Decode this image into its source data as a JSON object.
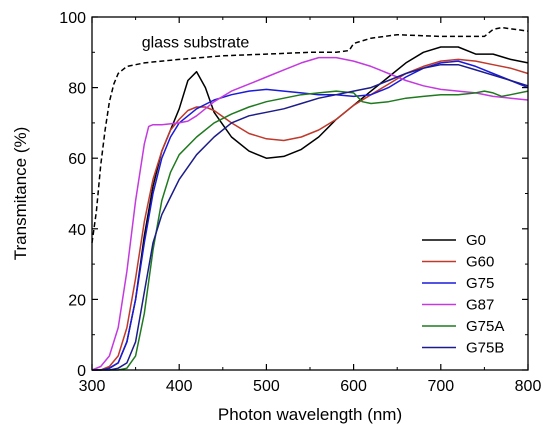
{
  "chart_data": {
    "type": "line",
    "xlabel": "Photon wavelength (nm)",
    "ylabel": "Transmitance (%)",
    "xlim": [
      300,
      800
    ],
    "ylim": [
      0,
      100
    ],
    "xticks": [
      300,
      400,
      500,
      600,
      700,
      800
    ],
    "yticks": [
      0,
      20,
      40,
      60,
      80,
      100
    ],
    "grid": false,
    "legend_position": "bottom-right",
    "annotation": {
      "text": "glass substrate",
      "x": 357,
      "y": 93
    },
    "series": [
      {
        "name": "",
        "style": "dashed",
        "color": "#000000",
        "x": [
          300,
          305,
          310,
          315,
          320,
          325,
          330,
          335,
          340,
          350,
          360,
          380,
          400,
          450,
          500,
          550,
          580,
          595,
          600,
          620,
          650,
          700,
          750,
          760,
          770,
          800
        ],
        "y": [
          36,
          45,
          58,
          68,
          76,
          81,
          84,
          85,
          86,
          86.5,
          87,
          87.5,
          88,
          89,
          89.5,
          90,
          90,
          90.5,
          92.5,
          94,
          95,
          94.5,
          94.5,
          96.5,
          97,
          96
        ]
      },
      {
        "name": "G0",
        "style": "solid",
        "color": "#000000",
        "x": [
          300,
          310,
          320,
          330,
          340,
          350,
          360,
          370,
          380,
          390,
          400,
          410,
          420,
          430,
          440,
          460,
          480,
          500,
          520,
          540,
          560,
          580,
          600,
          620,
          640,
          660,
          680,
          700,
          720,
          740,
          760,
          780,
          800
        ],
        "y": [
          0,
          0,
          0.5,
          2,
          8,
          20,
          38,
          52,
          62,
          68,
          74,
          82,
          84.5,
          80,
          73,
          66,
          62,
          60,
          60.5,
          62.5,
          66,
          71,
          75,
          79,
          83,
          87,
          90,
          91.5,
          91.5,
          89.5,
          89.5,
          88,
          87
        ]
      },
      {
        "name": "G60",
        "style": "solid",
        "color": "#c0392b",
        "x": [
          300,
          310,
          320,
          330,
          340,
          350,
          360,
          370,
          380,
          390,
          400,
          410,
          420,
          430,
          440,
          460,
          480,
          500,
          520,
          540,
          560,
          580,
          600,
          620,
          640,
          660,
          680,
          700,
          720,
          740,
          760,
          780,
          800
        ],
        "y": [
          0,
          0,
          1,
          4,
          12,
          26,
          42,
          54,
          62,
          68,
          71,
          73.5,
          74.5,
          74.5,
          73.5,
          70,
          67,
          65.5,
          65,
          66,
          68,
          71,
          75,
          78,
          81,
          84,
          86,
          87.5,
          88,
          87.5,
          86.5,
          85.5,
          84
        ]
      },
      {
        "name": "G75",
        "style": "solid",
        "color": "#1a1adb",
        "x": [
          300,
          310,
          320,
          330,
          340,
          350,
          360,
          370,
          380,
          390,
          400,
          420,
          440,
          460,
          480,
          500,
          520,
          540,
          560,
          580,
          600,
          620,
          640,
          660,
          680,
          700,
          720,
          740,
          760,
          780,
          800
        ],
        "y": [
          0,
          0,
          0.5,
          2,
          8,
          20,
          36,
          50,
          60,
          66,
          70,
          74,
          76.5,
          78,
          79,
          79.5,
          79,
          78.5,
          78,
          78,
          77.5,
          78,
          80,
          83,
          85.5,
          87,
          87.5,
          86,
          84,
          82,
          80
        ]
      },
      {
        "name": "G87",
        "style": "solid",
        "color": "#c43adf",
        "x": [
          300,
          310,
          320,
          330,
          340,
          350,
          360,
          365,
          370,
          380,
          400,
          410,
          420,
          440,
          460,
          480,
          500,
          520,
          540,
          560,
          580,
          600,
          620,
          640,
          660,
          680,
          700,
          720,
          740,
          760,
          780,
          800
        ],
        "y": [
          0,
          1,
          4,
          12,
          28,
          48,
          64,
          69,
          69.5,
          69.5,
          70,
          70.5,
          72,
          76,
          79,
          81,
          83,
          85,
          87,
          88.5,
          88.5,
          87.5,
          86,
          84,
          82,
          80.5,
          79.5,
          79,
          78.5,
          77.5,
          77,
          76.5
        ]
      },
      {
        "name": "G75A",
        "style": "solid",
        "color": "#1f7a1f",
        "x": [
          300,
          320,
          330,
          340,
          350,
          360,
          370,
          380,
          390,
          400,
          420,
          440,
          460,
          480,
          500,
          520,
          540,
          560,
          580,
          600,
          610,
          620,
          640,
          660,
          680,
          700,
          720,
          740,
          750,
          760,
          770,
          780,
          800
        ],
        "y": [
          0,
          0,
          0,
          0.5,
          4,
          16,
          34,
          48,
          56,
          61,
          66,
          70,
          72.5,
          74.5,
          76,
          77,
          78,
          78.5,
          79,
          78.5,
          76,
          75.5,
          76,
          77,
          77.5,
          78,
          78,
          78.5,
          79,
          78.5,
          77.5,
          78,
          79
        ]
      },
      {
        "name": "G75B",
        "style": "solid",
        "color": "#1c1c8a",
        "x": [
          300,
          320,
          330,
          340,
          350,
          360,
          370,
          380,
          390,
          400,
          420,
          440,
          460,
          480,
          500,
          520,
          540,
          560,
          580,
          600,
          620,
          640,
          660,
          680,
          700,
          720,
          740,
          760,
          780,
          800
        ],
        "y": [
          0,
          0,
          0.5,
          2,
          8,
          22,
          36,
          44,
          49,
          54,
          61,
          66,
          70,
          72,
          73,
          74,
          75.5,
          77,
          78,
          79,
          80,
          82,
          84,
          85.5,
          86.5,
          86.5,
          85,
          83.5,
          82,
          80.5
        ]
      }
    ]
  }
}
